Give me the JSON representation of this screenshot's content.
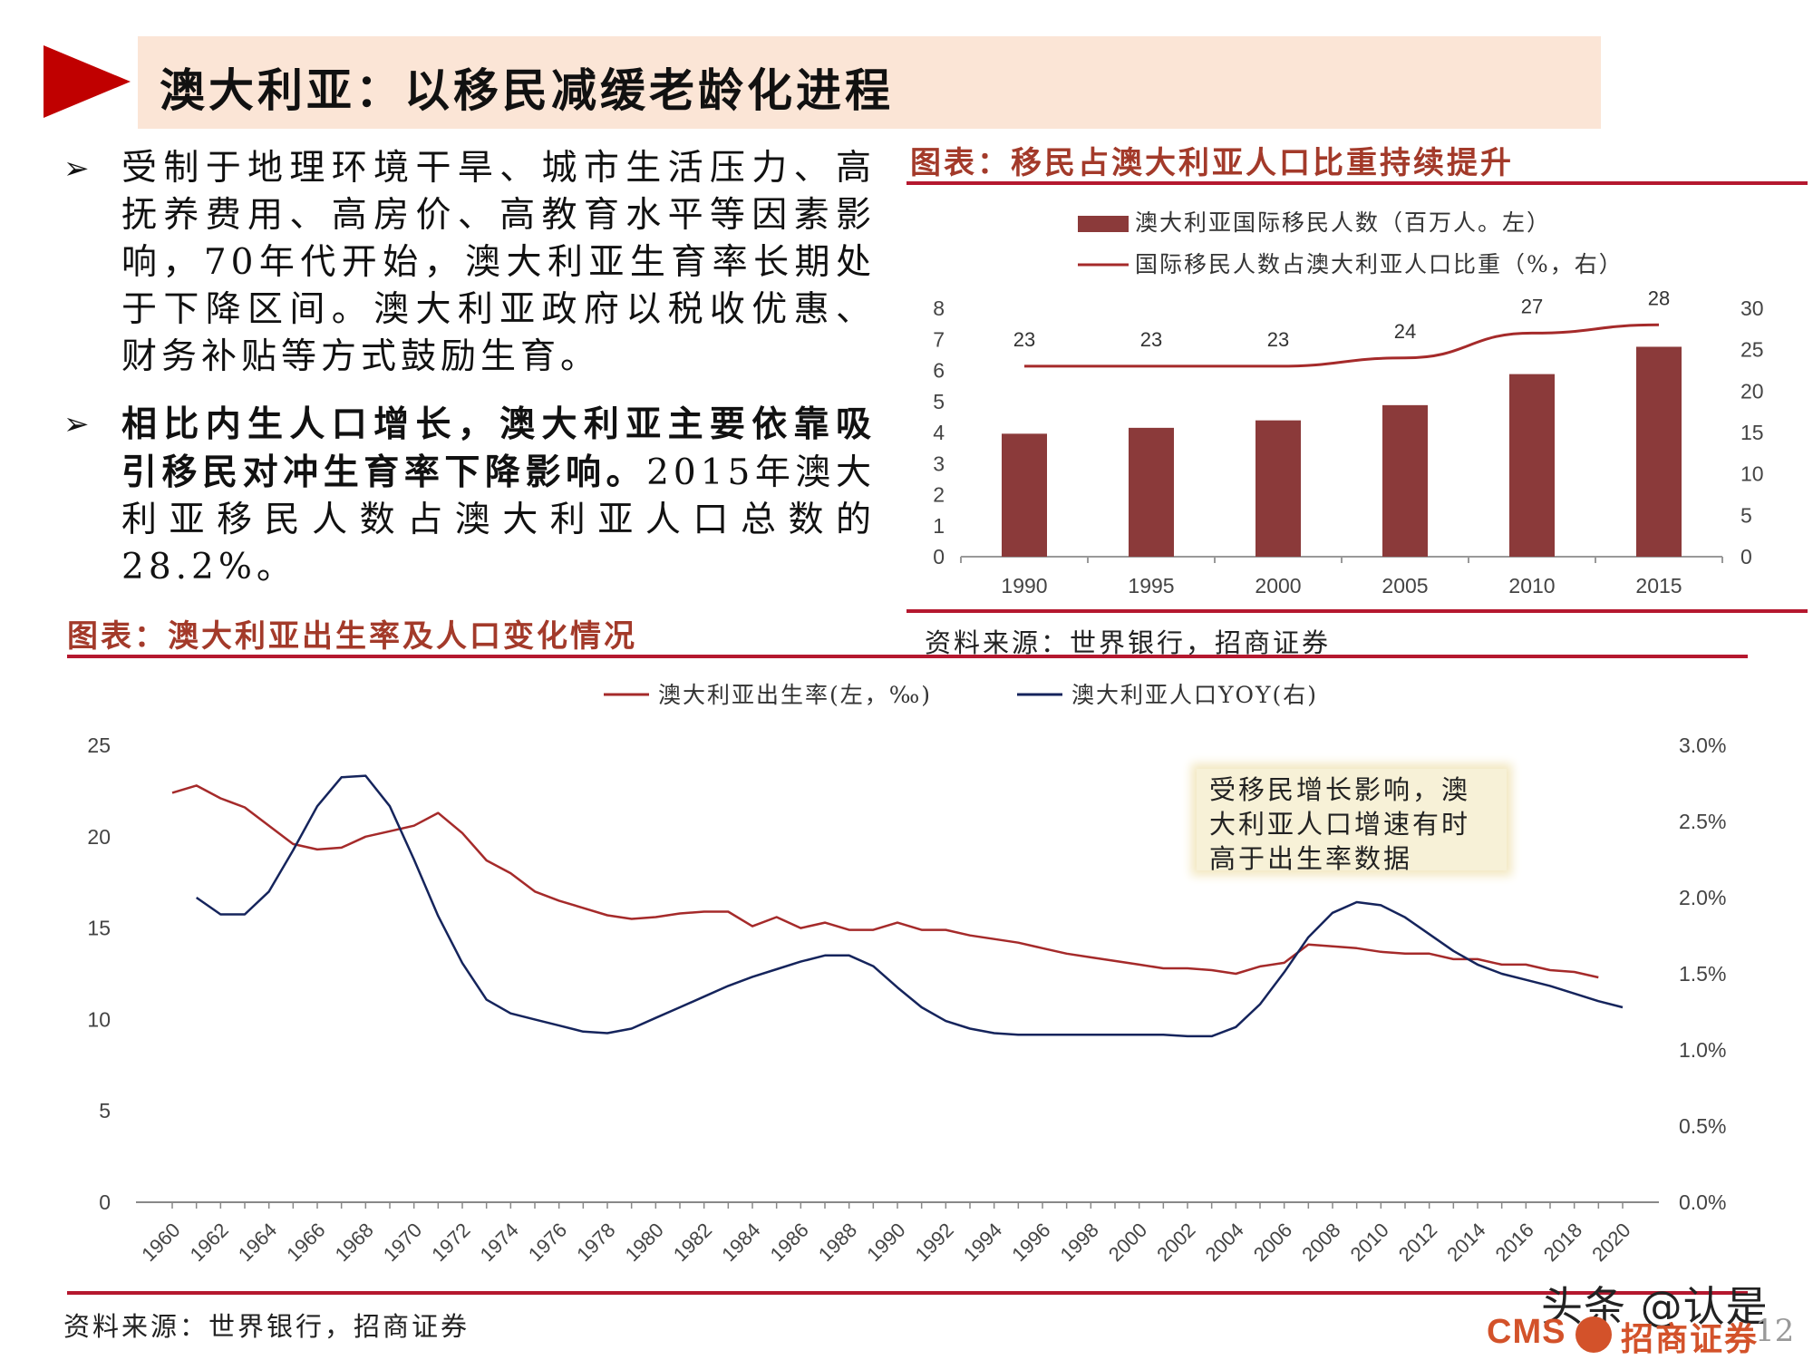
{
  "header": {
    "title": "澳大利亚：以移民减缓老龄化进程"
  },
  "bullets": [
    {
      "marker": "➢",
      "text": "受制于地理环境干旱、城市生活压力、高抚养费用、高房价、高教育水平等因素影响，70年代开始，澳大利亚生育率长期处于下降区间。澳大利亚政府以税收优惠、财务补贴等方式鼓励生育。"
    },
    {
      "marker": "➢",
      "bold": "相比内生人口增长，澳大利亚主要依靠吸引移民对冲生育率下降影响。",
      "text": "2015年澳大利亚移民人数占澳大利亚人口总数的28.2%。"
    }
  ],
  "chart1": {
    "heading": "图表：移民占澳大利亚人口比重持续提升",
    "source": "资料来源：世界银行，招商证券",
    "colors": {
      "bar": "#8b3a3a",
      "line": "#a52a2a"
    }
  },
  "chart2": {
    "heading": "图表：澳大利亚出生率及人口变化情况",
    "source": "资料来源：世界银行，招商证券",
    "annotation": "受移民增长影响，澳大利亚人口增速有时高于出生率数据",
    "colors": {
      "birth": "#a52a2a",
      "yoy": "#15245c"
    }
  },
  "footer": {
    "watermark": "头条 @认是",
    "logo_text": "CMS",
    "logo_cn": "招商证券",
    "page": "12"
  },
  "chart_data": [
    {
      "type": "bar",
      "title": "",
      "categories": [
        "1990",
        "1995",
        "2000",
        "2005",
        "2010",
        "2015"
      ],
      "series": [
        {
          "name": "澳大利亚国际移民人数（百万人。左）",
          "type": "bar",
          "axis": "left",
          "values": [
            3.96,
            4.15,
            4.39,
            4.88,
            5.88,
            6.76
          ]
        },
        {
          "name": "国际移民人数占澳大利亚人口比重（%，右）",
          "type": "line",
          "axis": "right",
          "values": [
            23,
            23,
            23,
            24,
            27,
            28
          ]
        }
      ],
      "y_left": {
        "min": 0,
        "max": 8,
        "ticks": [
          0,
          1,
          2,
          3,
          4,
          5,
          6,
          7,
          8
        ]
      },
      "y_right": {
        "min": 0,
        "max": 30,
        "ticks": [
          0,
          5,
          10,
          15,
          20,
          25,
          30
        ]
      },
      "data_labels": [
        "23",
        "23",
        "23",
        "24",
        "27",
        "28"
      ],
      "legend": "top"
    },
    {
      "type": "line",
      "title": "",
      "x": [
        1960,
        1961,
        1962,
        1963,
        1964,
        1965,
        1966,
        1967,
        1968,
        1969,
        1970,
        1971,
        1972,
        1973,
        1974,
        1975,
        1976,
        1977,
        1978,
        1979,
        1980,
        1981,
        1982,
        1983,
        1984,
        1985,
        1986,
        1987,
        1988,
        1989,
        1990,
        1991,
        1992,
        1993,
        1994,
        1995,
        1996,
        1997,
        1998,
        1999,
        2000,
        2001,
        2002,
        2003,
        2004,
        2005,
        2006,
        2007,
        2008,
        2009,
        2010,
        2011,
        2012,
        2013,
        2014,
        2015,
        2016,
        2017,
        2018,
        2019,
        2020
      ],
      "x_tick_labels": [
        "1960",
        "1962",
        "1964",
        "1966",
        "1968",
        "1970",
        "1972",
        "1974",
        "1976",
        "1978",
        "1980",
        "1982",
        "1984",
        "1986",
        "1988",
        "1990",
        "1992",
        "1994",
        "1996",
        "1998",
        "2000",
        "2002",
        "2004",
        "2006",
        "2008",
        "2010",
        "2012",
        "2014",
        "2016",
        "2018",
        "2020"
      ],
      "series": [
        {
          "name": "澳大利亚出生率(左，‰)",
          "axis": "left",
          "x_start": 1960,
          "values": [
            22.4,
            22.8,
            22.1,
            21.6,
            20.6,
            19.6,
            19.3,
            19.4,
            20.0,
            20.3,
            20.6,
            21.3,
            20.2,
            18.7,
            18.0,
            17.0,
            16.5,
            16.1,
            15.7,
            15.5,
            15.6,
            15.8,
            15.9,
            15.9,
            15.1,
            15.6,
            15.0,
            15.3,
            14.9,
            14.9,
            15.3,
            14.9,
            14.9,
            14.6,
            14.4,
            14.2,
            13.9,
            13.6,
            13.4,
            13.2,
            13.0,
            12.8,
            12.8,
            12.7,
            12.5,
            12.9,
            13.1,
            14.1,
            14.0,
            13.9,
            13.7,
            13.6,
            13.6,
            13.3,
            13.3,
            13.0,
            13.0,
            12.7,
            12.6,
            12.3,
            null
          ],
          "color": "#a52a2a"
        },
        {
          "name": "澳大利亚人口YOY(右)",
          "axis": "right",
          "x_start": 1960,
          "values": [
            null,
            2.0,
            1.89,
            1.89,
            2.04,
            2.31,
            2.6,
            2.79,
            2.8,
            2.6,
            2.25,
            1.88,
            1.57,
            1.33,
            1.24,
            1.2,
            1.16,
            1.12,
            1.11,
            1.14,
            1.21,
            1.28,
            1.35,
            1.42,
            1.48,
            1.53,
            1.58,
            1.62,
            1.62,
            1.55,
            1.41,
            1.28,
            1.19,
            1.14,
            1.11,
            1.1,
            1.1,
            1.1,
            1.1,
            1.1,
            1.1,
            1.1,
            1.09,
            1.09,
            1.15,
            1.3,
            1.51,
            1.74,
            1.9,
            1.97,
            1.95,
            1.87,
            1.76,
            1.65,
            1.56,
            1.5,
            1.46,
            1.42,
            1.37,
            1.32,
            1.28
          ],
          "color": "#15245c"
        }
      ],
      "y_left": {
        "min": 0,
        "max": 25,
        "ticks": [
          0,
          5,
          10,
          15,
          20,
          25
        ]
      },
      "y_right": {
        "min": 0,
        "max": 3.0,
        "ticks": [
          "0.0%",
          "0.5%",
          "1.0%",
          "1.5%",
          "2.0%",
          "2.5%",
          "3.0%"
        ]
      },
      "legend": "top"
    }
  ]
}
